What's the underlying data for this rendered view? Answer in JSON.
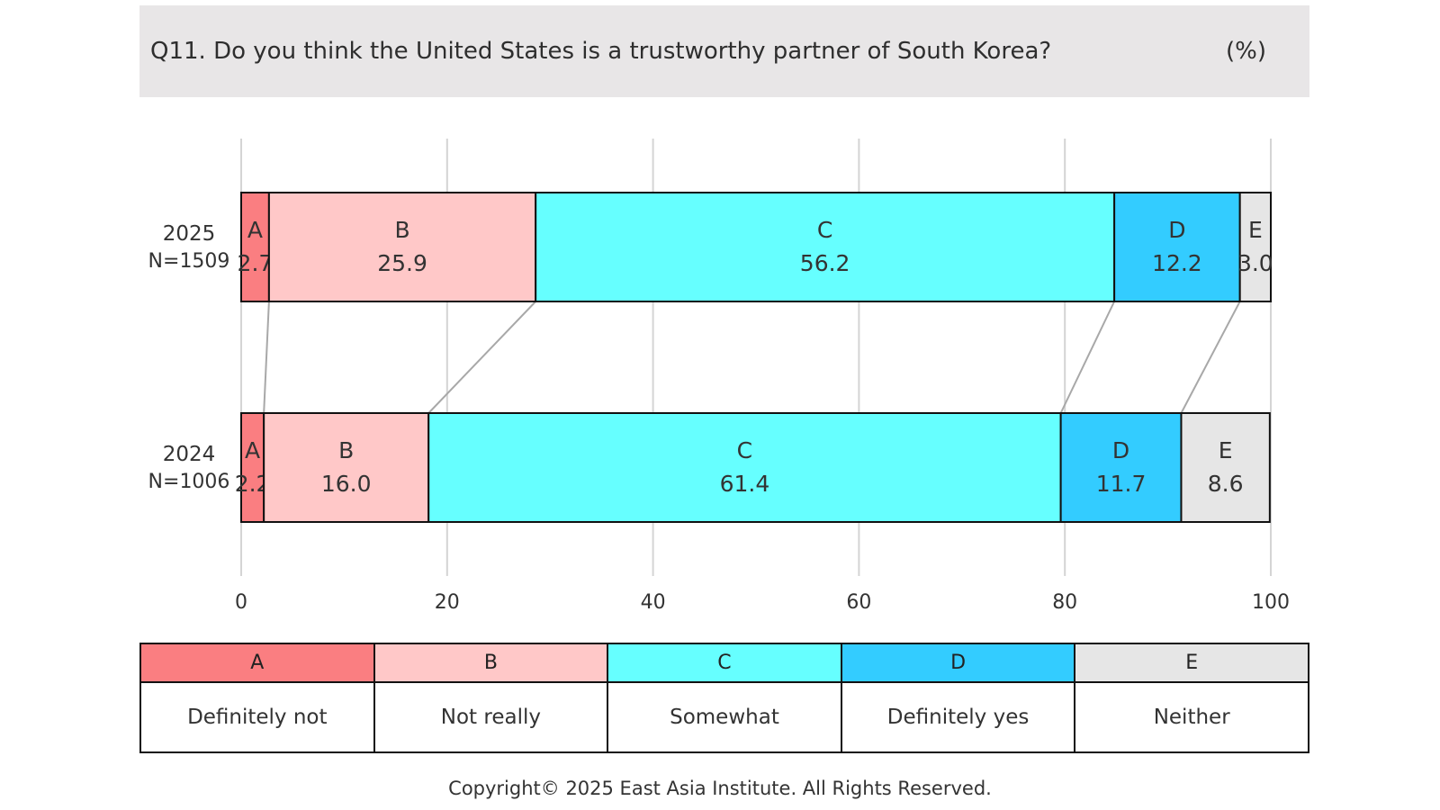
{
  "header": {
    "question": "Q11. Do you think the United States is a trustworthy partner of South Korea?",
    "unit": "(%)"
  },
  "chart_data": {
    "type": "bar",
    "orientation": "horizontal",
    "stacked": true,
    "categories": [
      {
        "year": "2025",
        "n": "N=1509"
      },
      {
        "year": "2024",
        "n": "N=1006"
      }
    ],
    "series": [
      {
        "name": "A",
        "color": "#fa7e81",
        "values": [
          2.7,
          2.2
        ],
        "labels": [
          "2.7",
          "2.2"
        ]
      },
      {
        "name": "B",
        "color": "#ffc8c8",
        "values": [
          25.9,
          16.0
        ],
        "labels": [
          "25.9",
          "16.0"
        ]
      },
      {
        "name": "C",
        "color": "#66ffff",
        "values": [
          56.2,
          61.4
        ],
        "labels": [
          "56.2",
          "61.4"
        ]
      },
      {
        "name": "D",
        "color": "#33ccff",
        "values": [
          12.2,
          11.7
        ],
        "labels": [
          "12.2",
          "11.7"
        ]
      },
      {
        "name": "E",
        "color": "#e6e6e6",
        "values": [
          3.0,
          8.6
        ],
        "labels": [
          "3.0",
          "8.6"
        ]
      }
    ],
    "xlim": [
      0,
      100
    ],
    "xticks": [
      "0",
      "20",
      "40",
      "60",
      "80",
      "100"
    ],
    "grid": true,
    "connector_lines": true
  },
  "legend": [
    {
      "code": "A",
      "label": "Definitely not",
      "color": "#fa7e81"
    },
    {
      "code": "B",
      "label": "Not really",
      "color": "#ffc8c8"
    },
    {
      "code": "C",
      "label": "Somewhat",
      "color": "#66ffff"
    },
    {
      "code": "D",
      "label": "Definitely yes",
      "color": "#33ccff"
    },
    {
      "code": "E",
      "label": "Neither",
      "color": "#e6e6e6"
    }
  ],
  "footer": {
    "copyright": "Copyright© 2025 East Asia Institute. All Rights Reserved."
  }
}
